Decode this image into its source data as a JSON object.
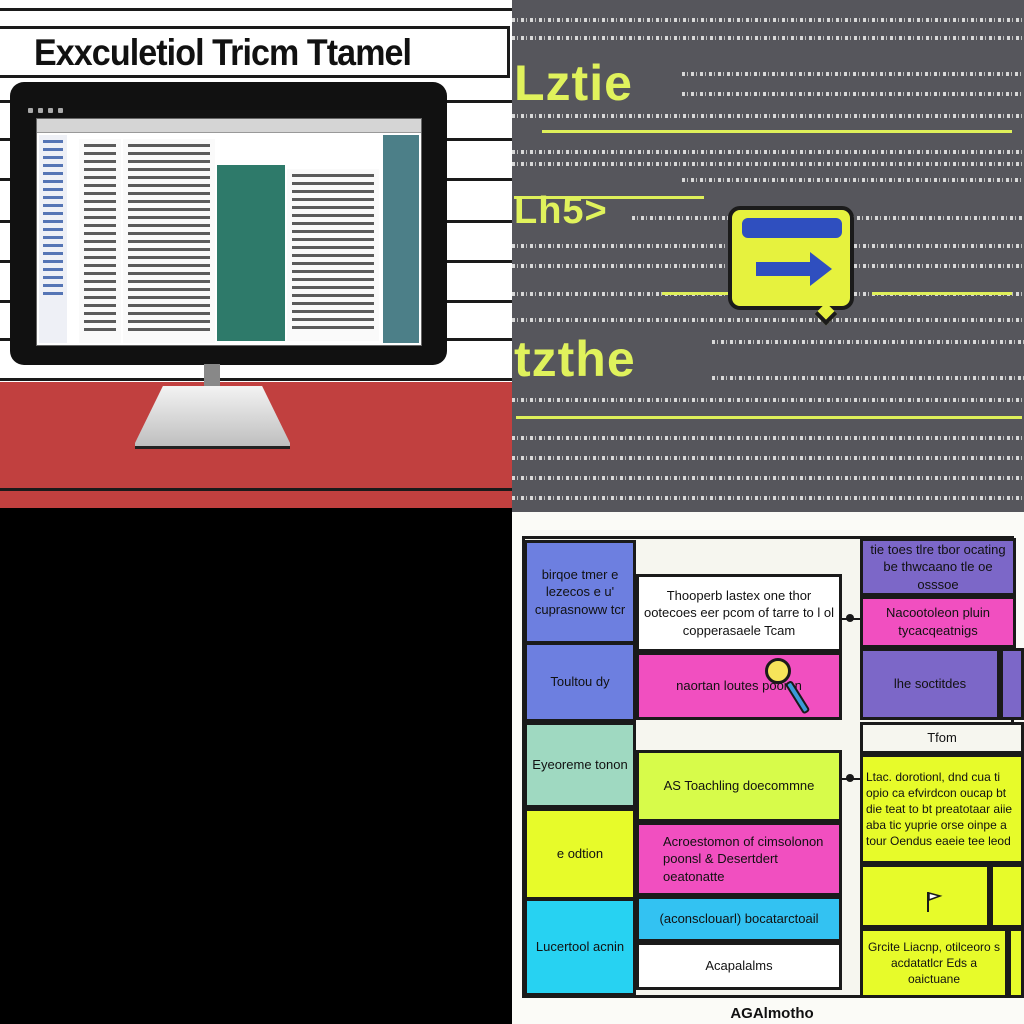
{
  "top_left": {
    "title": "Exxculetiol Tricm Ttamel"
  },
  "top_right": {
    "word1": "Lztie",
    "word2": "Lh5>",
    "word3": "tzthe"
  },
  "bottom_right": {
    "cells": {
      "c1": "birqoe tmer e lezecos e u' cuprasnoww tcr",
      "c2": "Toultou dy",
      "c3": "Thooperb lastex one thor ootecoes eer pcom of tarre to l ol copperasaele Tcam",
      "c4": "naortan loutes poomn",
      "c5": "tie toes tlre tbor ocating be thwcaano tle oe osssoe",
      "c6": "Nacootoleon pluin tycacqeatnigs",
      "c7": "lhe soctitdes",
      "c8": "Eyeoreme tonon",
      "c9": "AS Toachling doecommne",
      "c10": "Tfom",
      "c11": "e odtion",
      "c12": "Acroestomon of cimsolonon poonsl & Desertdert oeatonatte",
      "c13": "Ltac. dorotionl, dnd cua ti opio ca efvirdcon oucap bt die teat to bt preatotaar aiie aba tic yuprie orse oinpe a tour Oendus eaeie tee leod",
      "c14": "Lucertool acnin",
      "c15": "(aconsclouarl) bocatarctoail",
      "c16": "Acapalalms",
      "c17": "Grcite Liacnp, otilceoro s acdatatlcr Eds a oaictuane",
      "caption": "AGAlmotho"
    }
  },
  "colors": {
    "red_band": "#c1403f",
    "screen_gray": "#56565c",
    "accent_yellow": "#e0f25c",
    "blue": "#6d7fe0",
    "pink": "#f14fc0",
    "lime": "#d7fb4a",
    "cyan": "#27d2f2",
    "purple": "#7c67c8",
    "mint": "#9fd9c1"
  }
}
